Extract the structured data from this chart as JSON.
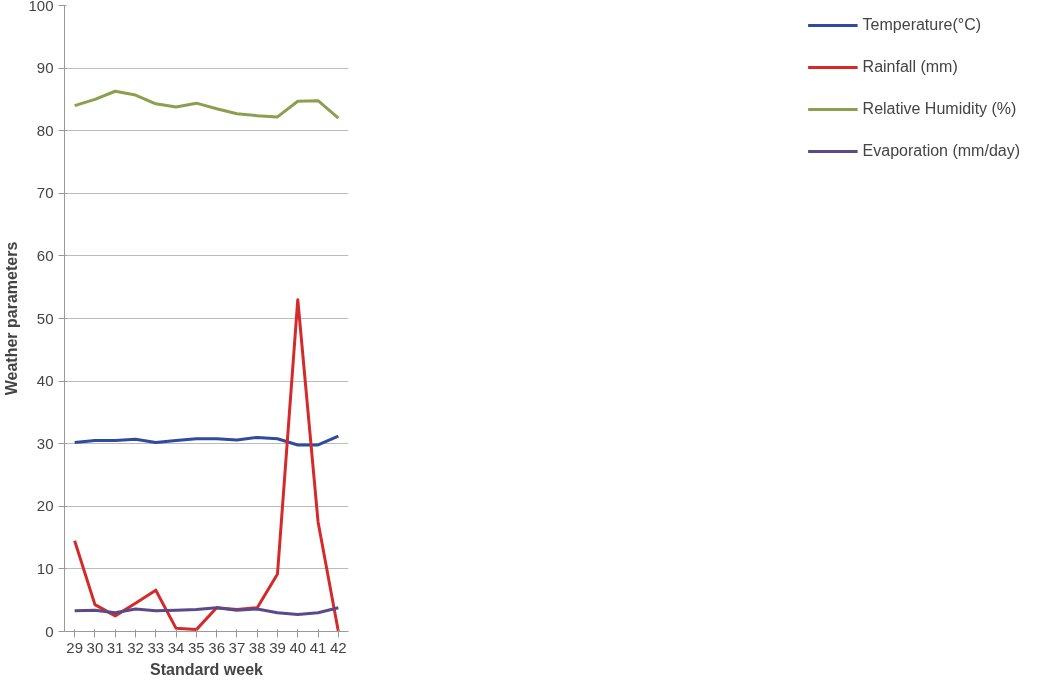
{
  "chart_data": {
    "type": "line",
    "xlabel": "Standard week",
    "ylabel": "Weather parameters",
    "categories": [
      "29",
      "30",
      "31",
      "32",
      "33",
      "34",
      "35",
      "36",
      "37",
      "38",
      "39",
      "40",
      "41",
      "42"
    ],
    "series": [
      {
        "name": "Temperature(°C)",
        "color": "#2e4b9c",
        "values": [
          30.2,
          30.5,
          30.5,
          30.7,
          30.2,
          30.5,
          30.8,
          30.8,
          30.6,
          31.0,
          30.8,
          29.8,
          29.8,
          31.2
        ]
      },
      {
        "name": "Rainfall (mm)",
        "color": "#d42a2a",
        "values": [
          14.5,
          4.3,
          2.5,
          4.5,
          6.6,
          0.5,
          0.3,
          3.8,
          3.5,
          3.8,
          9.2,
          53,
          17.5,
          0
        ]
      },
      {
        "name": "Relative Humidity (%)",
        "color": "#8aa04f",
        "values": [
          84,
          85,
          86.3,
          85.7,
          84.3,
          83.8,
          84.4,
          83.5,
          82.7,
          82.4,
          82.2,
          84.7,
          84.8,
          82
        ]
      },
      {
        "name": "Evaporation (mm/day)",
        "color": "#5a4a8a",
        "values": [
          3.3,
          3.4,
          3.0,
          3.6,
          3.3,
          3.4,
          3.5,
          3.8,
          3.4,
          3.6,
          3.0,
          2.7,
          3.0,
          3.8
        ]
      }
    ],
    "ylim": [
      0,
      100
    ],
    "yticks": [
      0,
      10,
      20,
      30,
      40,
      50,
      60,
      70,
      80,
      90,
      100
    ],
    "grid": "y",
    "legend": "right",
    "marker": "none",
    "line_style": "solid"
  }
}
